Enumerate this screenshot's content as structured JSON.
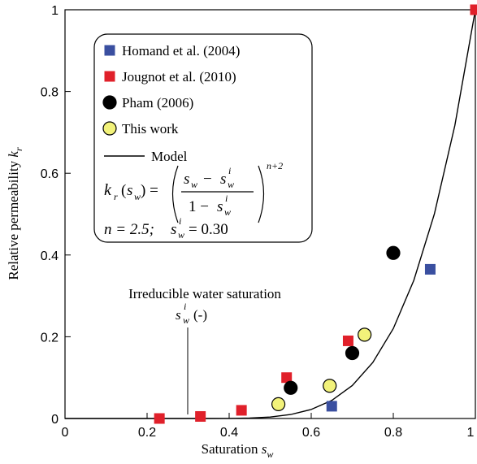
{
  "chart_data": {
    "type": "scatter",
    "xlabel": "Saturation",
    "xlabel_symbol": "s",
    "xlabel_subscript": "w",
    "ylabel": "Relative permeability",
    "ylabel_symbol": "k",
    "ylabel_subscript": "r",
    "xlim": [
      0,
      1
    ],
    "ylim": [
      0,
      1
    ],
    "xticks": [
      0,
      0.2,
      0.4,
      0.6,
      0.8,
      1
    ],
    "yticks": [
      0,
      0.2,
      0.4,
      0.6,
      0.8,
      1
    ],
    "series": [
      {
        "name": "Homand et al. (2004)",
        "color": "#3a4fa0",
        "marker": "square",
        "x": [
          0.65,
          0.89
        ],
        "values": [
          0.03,
          0.365
        ]
      },
      {
        "name": "Jougnot et al. (2010)",
        "color": "#e0202a",
        "marker": "square",
        "x": [
          0.23,
          0.33,
          0.43,
          0.54,
          0.69,
          1.0
        ],
        "values": [
          0.0,
          0.005,
          0.02,
          0.1,
          0.19,
          1.0
        ]
      },
      {
        "name": "Pham (2006)",
        "color": "#000000",
        "marker": "circle",
        "x": [
          0.55,
          0.7,
          0.8
        ],
        "values": [
          0.075,
          0.16,
          0.405
        ]
      },
      {
        "name": "This work",
        "color": "#f2f27a",
        "marker": "circle",
        "x": [
          0.52,
          0.645,
          0.73
        ],
        "values": [
          0.035,
          0.08,
          0.205
        ]
      },
      {
        "name": "Model",
        "color": "#000000",
        "marker": "line",
        "x": [
          0,
          0.05,
          0.1,
          0.15,
          0.2,
          0.25,
          0.3,
          0.35,
          0.4,
          0.45,
          0.5,
          0.55,
          0.6,
          0.65,
          0.7,
          0.75,
          0.8,
          0.85,
          0.9,
          0.95,
          1.0
        ],
        "values": [
          0,
          0,
          0,
          0,
          0,
          0,
          0,
          1e-05,
          0.00016,
          0.00098,
          0.0036,
          0.0097,
          0.0221,
          0.0442,
          0.0806,
          0.137,
          0.22,
          0.338,
          0.5,
          0.717,
          1.0
        ]
      }
    ],
    "model_formula": {
      "lhs": [
        "k",
        "r",
        "(",
        "s",
        "w",
        ") ="
      ],
      "numerator": [
        "s",
        "w",
        "−",
        "s",
        "w",
        "i"
      ],
      "denominator": [
        "1 −",
        "s",
        "w",
        "i"
      ],
      "exponent": "n+2"
    },
    "model_params": [
      "n = 2.5;",
      "s",
      "w",
      "i",
      "= 0.30"
    ],
    "annotation": [
      "Irreducible water saturation",
      "s",
      "w",
      "i",
      "(-)"
    ]
  }
}
